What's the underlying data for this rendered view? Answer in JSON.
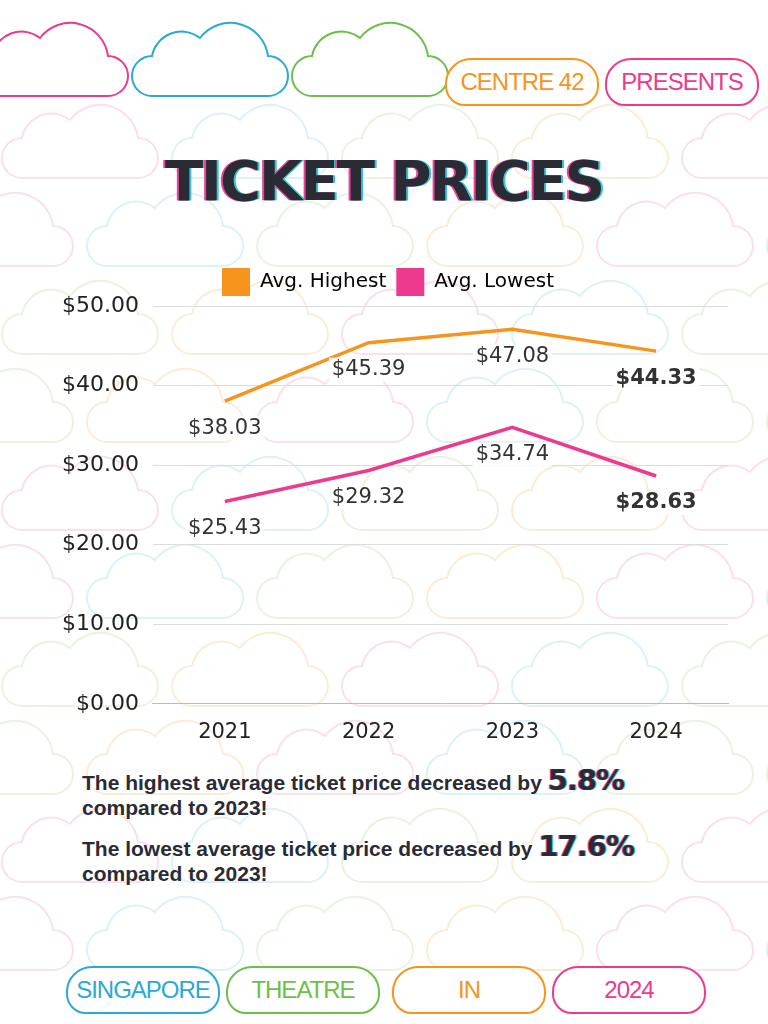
{
  "header": {
    "left": "CENTRE 42",
    "right": "PRESENTS"
  },
  "chart_data": {
    "type": "line",
    "title": "TICKET PRICES",
    "categories": [
      "2021",
      "2022",
      "2023",
      "2024"
    ],
    "series": [
      {
        "name": "Avg. Highest",
        "color": "#f7941d",
        "values": [
          38.03,
          45.39,
          47.08,
          44.33
        ],
        "value_labels": [
          "$38.03",
          "$45.39",
          "$47.08",
          "$44.33"
        ]
      },
      {
        "name": "Avg. Lowest",
        "color": "#ec3a8e",
        "values": [
          25.43,
          29.32,
          34.74,
          28.63
        ],
        "value_labels": [
          "$25.43",
          "$29.32",
          "$34.74",
          "$28.63"
        ]
      }
    ],
    "ylim": [
      0,
      50
    ],
    "yticks": [
      {
        "value": 0,
        "label": "$0.00"
      },
      {
        "value": 10,
        "label": "$10.00"
      },
      {
        "value": 20,
        "label": "$20.00"
      },
      {
        "value": 30,
        "label": "$30.00"
      },
      {
        "value": 40,
        "label": "$40.00"
      },
      {
        "value": 50,
        "label": "$50.00"
      }
    ],
    "grid": true,
    "legend": "top",
    "data_labels": true
  },
  "annotations": [
    {
      "text": "The highest average ticket price decreased by",
      "highlight": "5.8%",
      "continuation": "compared to 2023!"
    },
    {
      "text": "The lowest average ticket price decreased by",
      "highlight": "17.6%",
      "continuation": "compared to 2023!"
    }
  ],
  "footer": [
    "SINGAPORE",
    "THEATRE",
    "IN",
    "2024"
  ]
}
